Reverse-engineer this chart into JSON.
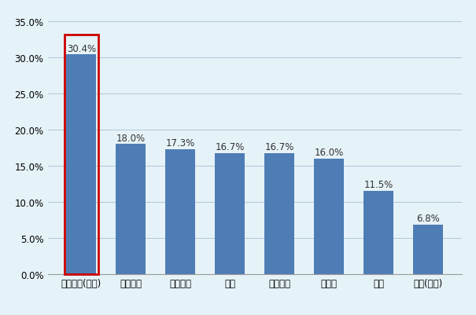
{
  "categories": [
    "ブラジル(注１)",
    "イタリア",
    "スペイン",
    "英国",
    "フランス",
    "ドイツ",
    "日本",
    "米国(注２)"
  ],
  "values": [
    0.304,
    0.18,
    0.173,
    0.167,
    0.167,
    0.16,
    0.115,
    0.068
  ],
  "labels": [
    "30.4%",
    "18.0%",
    "17.3%",
    "16.7%",
    "16.7%",
    "16.0%",
    "11.5%",
    "6.8%"
  ],
  "bar_color": "#4e7db5",
  "highlight_index": 0,
  "highlight_border_color": "#cc0000",
  "background_color": "#e5f2f7",
  "plot_background_color": "#e5f2f7",
  "ylim": [
    0,
    0.35
  ],
  "yticks": [
    0.0,
    0.05,
    0.1,
    0.15,
    0.2,
    0.25,
    0.3,
    0.35
  ],
  "ytick_labels": [
    "0.0%",
    "5.0%",
    "10.0%",
    "15.0%",
    "20.0%",
    "25.0%",
    "30.0%",
    "35.0%"
  ],
  "grid_color": "#aec8d8",
  "label_fontsize": 8.5,
  "tick_fontsize": 8.5
}
